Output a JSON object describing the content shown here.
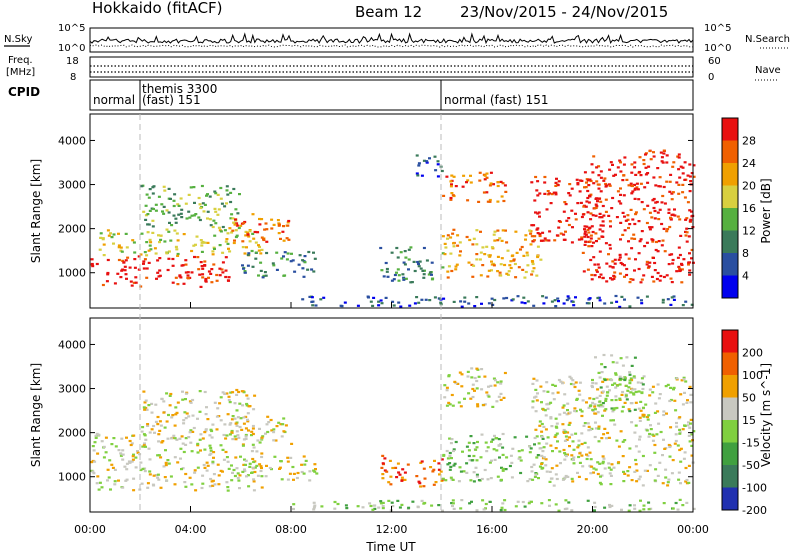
{
  "header": {
    "station": "Hokkaido (fitACF)",
    "beam": "Beam 12",
    "dates": "23/Nov/2015 - 24/Nov/2015"
  },
  "top_panel": {
    "nsky_label": "N.Sky",
    "nsearch_label": "N.Search",
    "freq_label_1": "Freq.",
    "freq_label_2": "[MHz]",
    "nave_label": "Nave",
    "cpid_label": "CPID",
    "left_ticks_noise": [
      "10^5",
      "10^0"
    ],
    "right_ticks_noise": [
      "10^5",
      "10^0"
    ],
    "left_ticks_freq": [
      "18",
      "8"
    ],
    "right_ticks_freq": [
      "60",
      "0"
    ],
    "cpid_segments": [
      {
        "start_hour": 0,
        "text": "normal"
      },
      {
        "start_hour": 2,
        "text": "themis 3300",
        "text2": "(fast) 151"
      },
      {
        "start_hour": 14,
        "text": "normal (fast) 151"
      }
    ]
  },
  "chart_data": [
    {
      "type": "heatmap",
      "panel": "power",
      "xlabel": "",
      "ylabel": "Slant Range [km]",
      "x_range_hours": [
        0,
        24
      ],
      "ylim": [
        200,
        4600
      ],
      "yticks": [
        1000,
        2000,
        3000,
        4000
      ],
      "colorbar": {
        "label": "Power [dB]",
        "ticks": [
          "28",
          "24",
          "20",
          "16",
          "12",
          "8",
          "4"
        ],
        "colors": [
          "#0000ee",
          "#2a4fa0",
          "#3a7a5a",
          "#56b040",
          "#d8d040",
          "#f0a000",
          "#f06000",
          "#e81010"
        ]
      },
      "echo_regions": [
        {
          "x0": 0.0,
          "x1": 5.5,
          "y0": 700,
          "y1": 1400,
          "level": 7
        },
        {
          "x0": 0.3,
          "x1": 6.8,
          "y0": 1400,
          "y1": 2000,
          "level": 4
        },
        {
          "x0": 2.0,
          "x1": 6.0,
          "y0": 2000,
          "y1": 3000,
          "level": 3
        },
        {
          "x0": 5.5,
          "x1": 8.0,
          "y0": 1700,
          "y1": 2400,
          "level": 6
        },
        {
          "x0": 6.0,
          "x1": 9.0,
          "y0": 900,
          "y1": 1500,
          "level": 2
        },
        {
          "x0": 12.8,
          "x1": 14.0,
          "y0": 3200,
          "y1": 3700,
          "level": 1
        },
        {
          "x0": 11.5,
          "x1": 14.0,
          "y0": 800,
          "y1": 1600,
          "level": 2
        },
        {
          "x0": 14.0,
          "x1": 16.5,
          "y0": 2600,
          "y1": 3300,
          "level": 6
        },
        {
          "x0": 14.0,
          "x1": 18.0,
          "y0": 900,
          "y1": 2000,
          "level": 5
        },
        {
          "x0": 17.5,
          "x1": 20.5,
          "y0": 1700,
          "y1": 3200,
          "level": 7
        },
        {
          "x0": 19.5,
          "x1": 24.0,
          "y0": 800,
          "y1": 3800,
          "level": 7
        },
        {
          "x0": 8.0,
          "x1": 24.0,
          "y0": 250,
          "y1": 500,
          "level": 1
        }
      ]
    },
    {
      "type": "heatmap",
      "panel": "velocity",
      "xlabel": "Time UT",
      "ylabel": "Slant Range [km]",
      "x_range_hours": [
        0,
        24
      ],
      "ylim": [
        200,
        4600
      ],
      "yticks": [
        1000,
        2000,
        3000,
        4000
      ],
      "xticks": [
        "00:00",
        "04:00",
        "08:00",
        "12:00",
        "16:00",
        "20:00",
        "00:00"
      ],
      "colorbar": {
        "label": "Velocity [m s^-1]",
        "ticks": [
          "200",
          "100",
          "50",
          "15",
          "-15",
          "-50",
          "-100",
          "-200"
        ],
        "colors": [
          "#2030b0",
          "#3a7a5a",
          "#40a040",
          "#80d040",
          "#c8c8c0",
          "#f0a000",
          "#f06000",
          "#e81010"
        ]
      },
      "echo_regions": [
        {
          "x0": 0.0,
          "x1": 6.8,
          "y0": 700,
          "y1": 2000,
          "level": 4
        },
        {
          "x0": 2.0,
          "x1": 6.5,
          "y0": 2000,
          "y1": 3000,
          "level": 4
        },
        {
          "x0": 5.5,
          "x1": 8.0,
          "y0": 1700,
          "y1": 2400,
          "level": 4
        },
        {
          "x0": 6.0,
          "x1": 9.0,
          "y0": 900,
          "y1": 1500,
          "level": 4
        },
        {
          "x0": 11.5,
          "x1": 14.0,
          "y0": 800,
          "y1": 1500,
          "level": 6
        },
        {
          "x0": 14.0,
          "x1": 18.0,
          "y0": 900,
          "y1": 2000,
          "level": 3
        },
        {
          "x0": 14.0,
          "x1": 16.5,
          "y0": 2600,
          "y1": 3500,
          "level": 4
        },
        {
          "x0": 17.5,
          "x1": 24.0,
          "y0": 800,
          "y1": 3300,
          "level": 4
        },
        {
          "x0": 20.0,
          "x1": 22.0,
          "y0": 2500,
          "y1": 3800,
          "level": 3
        },
        {
          "x0": 8.0,
          "x1": 24.0,
          "y0": 250,
          "y1": 500,
          "level": 3
        }
      ]
    }
  ]
}
